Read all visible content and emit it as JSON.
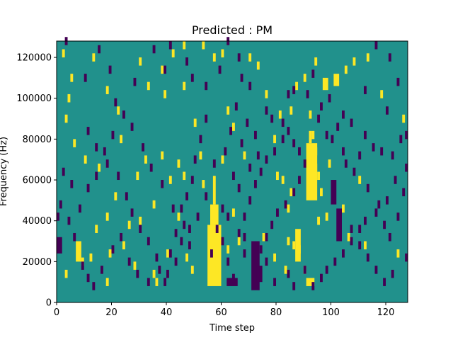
{
  "chart_data": {
    "type": "heatmap",
    "title": "Predicted : PM",
    "xlabel": "Time step",
    "ylabel": "Frequency (Hz)",
    "xlim": [
      0,
      128
    ],
    "ylim": [
      0,
      128000
    ],
    "grid": false,
    "x_ticks": [
      0,
      20,
      40,
      60,
      80,
      100,
      120
    ],
    "y_ticks": [
      0,
      20000,
      40000,
      60000,
      80000,
      100000,
      120000
    ],
    "x_tick_labels": [
      "0",
      "20",
      "40",
      "60",
      "80",
      "100",
      "120"
    ],
    "y_tick_labels": [
      "0",
      "20000",
      "40000",
      "60000",
      "80000",
      "100000",
      "120000"
    ],
    "background_value": 0,
    "colors": {
      "background": "#21918c",
      "high": "#fde725",
      "low": "#440154"
    },
    "cell_height_hz": 2000,
    "blocks_high": [
      [
        55,
        60,
        8000,
        38000
      ],
      [
        56,
        59,
        38000,
        48000
      ],
      [
        57,
        58,
        48000,
        62000
      ],
      [
        91,
        95,
        50000,
        78000
      ],
      [
        92,
        93,
        78000,
        84000
      ],
      [
        97,
        99,
        104000,
        110000
      ],
      [
        101,
        103,
        106000,
        112000
      ],
      [
        7,
        9,
        20000,
        30000
      ],
      [
        91,
        94,
        8000,
        12000
      ],
      [
        87,
        89,
        20000,
        36000
      ]
    ],
    "blocks_low": [
      [
        71,
        74,
        6000,
        30000
      ],
      [
        73,
        75,
        10000,
        18000
      ],
      [
        62,
        66,
        8000,
        12000
      ],
      [
        102,
        104,
        30000,
        46000
      ],
      [
        100,
        102,
        48000,
        60000
      ],
      [
        0,
        2,
        24000,
        32000
      ]
    ],
    "cells_high": [
      [
        2,
        120000
      ],
      [
        4,
        98000
      ],
      [
        3,
        88000
      ],
      [
        6,
        76000
      ],
      [
        5,
        108000
      ],
      [
        13,
        118000
      ],
      [
        18,
        102000
      ],
      [
        22,
        92000
      ],
      [
        30,
        116000
      ],
      [
        33,
        104000
      ],
      [
        38,
        112000
      ],
      [
        46,
        124000
      ],
      [
        50,
        86000
      ],
      [
        52,
        70000
      ],
      [
        53,
        56000
      ],
      [
        44,
        66000
      ],
      [
        41,
        58000
      ],
      [
        38,
        70000
      ],
      [
        35,
        46000
      ],
      [
        30,
        38000
      ],
      [
        26,
        36000
      ],
      [
        24,
        26000
      ],
      [
        19,
        22000
      ],
      [
        14,
        34000
      ],
      [
        9,
        18000
      ],
      [
        3,
        12000
      ],
      [
        12,
        20000
      ],
      [
        18,
        8000
      ],
      [
        28,
        16000
      ],
      [
        44,
        40000
      ],
      [
        47,
        20000
      ],
      [
        49,
        14000
      ],
      [
        62,
        92000
      ],
      [
        64,
        84000
      ],
      [
        68,
        70000
      ],
      [
        70,
        118000
      ],
      [
        73,
        114000
      ],
      [
        76,
        100000
      ],
      [
        79,
        78000
      ],
      [
        82,
        58000
      ],
      [
        84,
        44000
      ],
      [
        86,
        26000
      ],
      [
        83,
        14000
      ],
      [
        88,
        24000
      ],
      [
        90,
        14000
      ],
      [
        93,
        80000
      ],
      [
        96,
        52000
      ],
      [
        98,
        40000
      ],
      [
        105,
        112000
      ],
      [
        108,
        116000
      ],
      [
        113,
        118000
      ],
      [
        118,
        100000
      ],
      [
        124,
        22000
      ],
      [
        126,
        88000
      ],
      [
        112,
        26000
      ],
      [
        106,
        30000
      ],
      [
        110,
        58000
      ],
      [
        104,
        44000
      ],
      [
        64,
        42000
      ],
      [
        66,
        28000
      ],
      [
        58,
        14000
      ],
      [
        60,
        68000
      ],
      [
        46,
        60000
      ],
      [
        40,
        22000
      ],
      [
        35,
        12000
      ],
      [
        36,
        8000
      ],
      [
        21,
        50000
      ],
      [
        18,
        40000
      ],
      [
        10,
        68000
      ],
      [
        15,
        64000
      ],
      [
        29,
        60000
      ],
      [
        23,
        78000
      ],
      [
        32,
        68000
      ],
      [
        80,
        60000
      ],
      [
        85,
        52000
      ],
      [
        95,
        38000
      ],
      [
        99,
        66000
      ],
      [
        87,
        104000
      ],
      [
        90,
        108000
      ],
      [
        94,
        116000
      ],
      [
        60,
        120000
      ],
      [
        62,
        24000
      ],
      [
        75,
        30000
      ],
      [
        79,
        20000
      ],
      [
        84,
        28000
      ],
      [
        81,
        90000
      ],
      [
        85,
        92000
      ],
      [
        93,
        68000
      ],
      [
        94,
        64000
      ],
      [
        95,
        60000
      ],
      [
        94,
        72000
      ],
      [
        92,
        90000
      ],
      [
        46,
        104000
      ],
      [
        57,
        118000
      ],
      [
        53,
        124000
      ],
      [
        42,
        120000
      ],
      [
        39,
        100000
      ]
    ],
    "cells_low": [
      [
        3,
        126000
      ],
      [
        10,
        108000
      ],
      [
        15,
        122000
      ],
      [
        19,
        112000
      ],
      [
        21,
        96000
      ],
      [
        28,
        106000
      ],
      [
        35,
        122000
      ],
      [
        39,
        112000
      ],
      [
        41,
        124000
      ],
      [
        47,
        116000
      ],
      [
        49,
        108000
      ],
      [
        54,
        104000
      ],
      [
        59,
        112000
      ],
      [
        62,
        126000
      ],
      [
        66,
        118000
      ],
      [
        67,
        108000
      ],
      [
        70,
        104000
      ],
      [
        76,
        92000
      ],
      [
        78,
        88000
      ],
      [
        82,
        86000
      ],
      [
        84,
        100000
      ],
      [
        86,
        102000
      ],
      [
        91,
        100000
      ],
      [
        96,
        94000
      ],
      [
        99,
        98000
      ],
      [
        104,
        90000
      ],
      [
        107,
        86000
      ],
      [
        112,
        80000
      ],
      [
        115,
        74000
      ],
      [
        118,
        72000
      ],
      [
        122,
        70000
      ],
      [
        125,
        78000
      ],
      [
        127,
        64000
      ],
      [
        123,
        58000
      ],
      [
        120,
        48000
      ],
      [
        116,
        42000
      ],
      [
        112,
        38000
      ],
      [
        110,
        34000
      ],
      [
        107,
        28000
      ],
      [
        104,
        22000
      ],
      [
        101,
        18000
      ],
      [
        98,
        14000
      ],
      [
        96,
        10000
      ],
      [
        93,
        6000
      ],
      [
        90,
        14000
      ],
      [
        86,
        6000
      ],
      [
        84,
        12000
      ],
      [
        79,
        8000
      ],
      [
        76,
        18000
      ],
      [
        68,
        22000
      ],
      [
        66,
        32000
      ],
      [
        68,
        40000
      ],
      [
        70,
        48000
      ],
      [
        72,
        56000
      ],
      [
        74,
        62000
      ],
      [
        76,
        68000
      ],
      [
        79,
        72000
      ],
      [
        82,
        78000
      ],
      [
        84,
        82000
      ],
      [
        86,
        76000
      ],
      [
        88,
        72000
      ],
      [
        90,
        66000
      ],
      [
        88,
        58000
      ],
      [
        86,
        52000
      ],
      [
        83,
        46000
      ],
      [
        80,
        42000
      ],
      [
        78,
        36000
      ],
      [
        76,
        30000
      ],
      [
        74,
        24000
      ],
      [
        48,
        26000
      ],
      [
        46,
        36000
      ],
      [
        42,
        44000
      ],
      [
        38,
        56000
      ],
      [
        34,
        64000
      ],
      [
        31,
        74000
      ],
      [
        27,
        84000
      ],
      [
        24,
        90000
      ],
      [
        20,
        80000
      ],
      [
        17,
        72000
      ],
      [
        14,
        60000
      ],
      [
        11,
        54000
      ],
      [
        8,
        44000
      ],
      [
        5,
        56000
      ],
      [
        2,
        62000
      ],
      [
        0,
        40000
      ],
      [
        1,
        46000
      ],
      [
        4,
        38000
      ],
      [
        6,
        30000
      ],
      [
        9,
        16000
      ],
      [
        11,
        10000
      ],
      [
        13,
        6000
      ],
      [
        16,
        14000
      ],
      [
        20,
        24000
      ],
      [
        23,
        30000
      ],
      [
        26,
        18000
      ],
      [
        29,
        12000
      ],
      [
        33,
        8000
      ],
      [
        37,
        14000
      ],
      [
        39,
        8000
      ],
      [
        43,
        18000
      ],
      [
        45,
        28000
      ],
      [
        48,
        34000
      ],
      [
        51,
        40000
      ],
      [
        54,
        50000
      ],
      [
        57,
        66000
      ],
      [
        61,
        72000
      ],
      [
        64,
        60000
      ],
      [
        66,
        54000
      ],
      [
        63,
        82000
      ],
      [
        65,
        94000
      ],
      [
        69,
        86000
      ],
      [
        72,
        80000
      ],
      [
        73,
        70000
      ],
      [
        70,
        64000
      ],
      [
        67,
        76000
      ],
      [
        105,
        66000
      ],
      [
        108,
        62000
      ],
      [
        110,
        70000
      ],
      [
        113,
        54000
      ],
      [
        117,
        46000
      ],
      [
        119,
        36000
      ],
      [
        121,
        30000
      ],
      [
        124,
        40000
      ],
      [
        126,
        52000
      ],
      [
        127,
        20000
      ],
      [
        122,
        12000
      ],
      [
        119,
        8000
      ],
      [
        116,
        14000
      ],
      [
        113,
        20000
      ],
      [
        110,
        26000
      ],
      [
        107,
        34000
      ],
      [
        100,
        78000
      ],
      [
        102,
        84000
      ],
      [
        104,
        72000
      ],
      [
        98,
        80000
      ],
      [
        95,
        88000
      ],
      [
        93,
        110000
      ],
      [
        112,
        102000
      ],
      [
        120,
        92000
      ],
      [
        124,
        106000
      ],
      [
        121,
        118000
      ],
      [
        116,
        124000
      ],
      [
        127,
        80000
      ],
      [
        58,
        34000
      ],
      [
        60,
        28000
      ],
      [
        62,
        18000
      ],
      [
        64,
        10000
      ],
      [
        60,
        44000
      ],
      [
        62,
        40000
      ],
      [
        68,
        30000
      ],
      [
        56,
        22000
      ],
      [
        54,
        88000
      ],
      [
        52,
        78000
      ],
      [
        50,
        68000
      ],
      [
        49,
        58000
      ],
      [
        47,
        50000
      ],
      [
        45,
        44000
      ],
      [
        43,
        32000
      ],
      [
        41,
        22000
      ],
      [
        40,
        12000
      ],
      [
        36,
        20000
      ],
      [
        33,
        28000
      ],
      [
        30,
        34000
      ],
      [
        27,
        42000
      ],
      [
        25,
        50000
      ],
      [
        22,
        60000
      ],
      [
        18,
        66000
      ],
      [
        14,
        74000
      ],
      [
        11,
        82000
      ]
    ]
  }
}
